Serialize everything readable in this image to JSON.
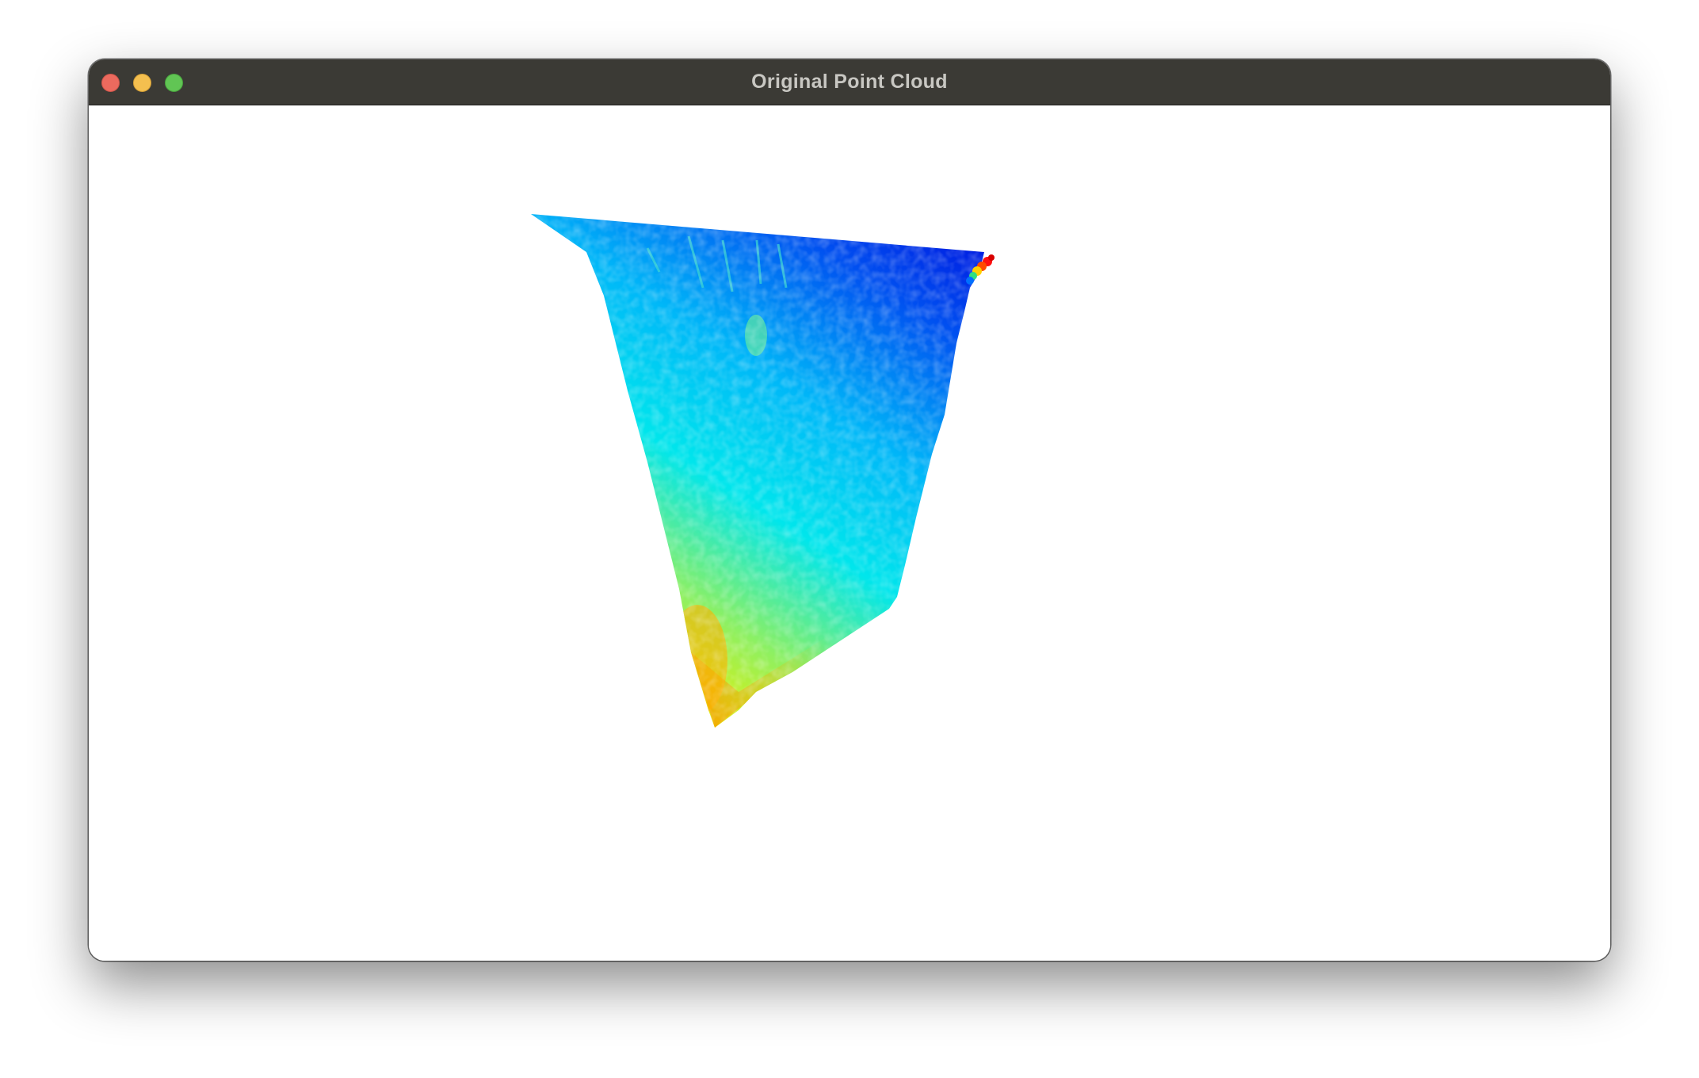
{
  "window": {
    "title": "Original Point Cloud",
    "controls": [
      "close-button",
      "minimize-button",
      "zoom-button"
    ]
  },
  "viewport": {
    "background": "#ffffff",
    "colormap": "jet",
    "colors": {
      "far": "#0000d8",
      "mid_far": "#0080ff",
      "mid": "#00e0f0",
      "mid_near": "#c8f000",
      "near": "#ffd000",
      "nearest": "#ff2000"
    }
  }
}
